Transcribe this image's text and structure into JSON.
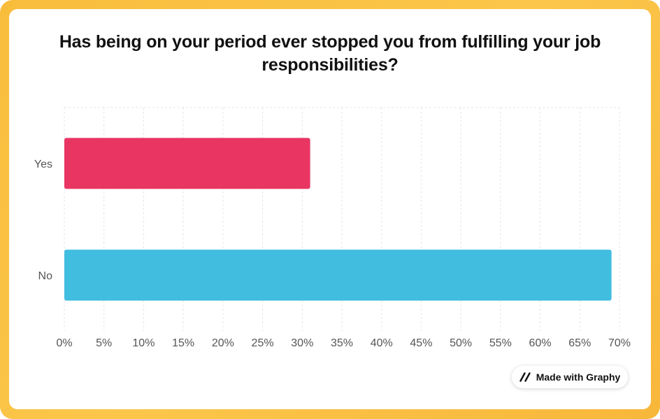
{
  "chart_data": {
    "type": "bar",
    "orientation": "horizontal",
    "title": "Has being on your period ever stopped you from fulfilling your job responsibilities?",
    "categories": [
      "Yes",
      "No"
    ],
    "values": [
      31,
      69
    ],
    "colors": [
      "#e83562",
      "#41bde0"
    ],
    "xlim": [
      0,
      70
    ],
    "xticks": [
      "0%",
      "5%",
      "10%",
      "15%",
      "20%",
      "25%",
      "30%",
      "35%",
      "40%",
      "45%",
      "50%",
      "55%",
      "60%",
      "65%",
      "70%"
    ],
    "grid": true
  },
  "badge": {
    "label": "Made with Graphy",
    "icon": "graphy-logo-icon"
  },
  "colors": {
    "frame": "#f9bd3c",
    "card": "#ffffff"
  }
}
